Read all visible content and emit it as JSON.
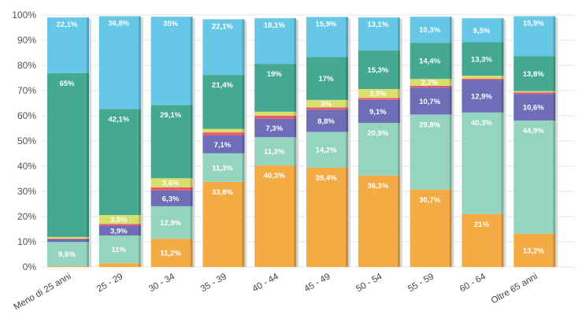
{
  "chart_data": {
    "type": "bar",
    "stacked": true,
    "ylim": [
      0,
      100
    ],
    "y_ticks": [
      "0%",
      "10%",
      "20%",
      "30%",
      "40%",
      "50%",
      "60%",
      "70%",
      "80%",
      "90%",
      "100%"
    ],
    "grid": true,
    "legend": "none",
    "categories": [
      "Meno di 25 anni",
      "25 - 29",
      "30 - 34",
      "35 - 39",
      "40 - 44",
      "45 - 49",
      "50 - 54",
      "55 - 59",
      "60 - 64",
      "Oltre 65 anni"
    ],
    "series": [
      {
        "color": "#f5ab43",
        "values": [
          0.3,
          1.5,
          11.2,
          33.8,
          40.3,
          39.4,
          36.3,
          30.7,
          21,
          13.2
        ],
        "labels": [
          "",
          "",
          "11,2%",
          "33,8%",
          "40,3%",
          "39,4%",
          "36,3%",
          "30,7%",
          "21%",
          "13,2%"
        ]
      },
      {
        "color": "#95d5c0",
        "values": [
          9.6,
          11,
          12.9,
          11.3,
          11.2,
          14.2,
          20.9,
          29.8,
          40.3,
          44.9
        ],
        "labels": [
          "9,6%",
          "11%",
          "12,9%",
          "11,3%",
          "11,2%",
          "14,2%",
          "20,9%",
          "29,8%",
          "40,3%",
          "44,9%"
        ]
      },
      {
        "color": "#6d6db8",
        "values": [
          1.1,
          3.9,
          6.3,
          7.1,
          7.3,
          8.8,
          9.1,
          10.7,
          12.9,
          10.6
        ],
        "labels": [
          "",
          "3,9%",
          "6,3%",
          "7,1%",
          "7,3%",
          "8,8%",
          "9,1%",
          "10,7%",
          "12,9%",
          "10,6%"
        ]
      },
      {
        "color": "#e85a70",
        "values": [
          0.3,
          0.7,
          1.2,
          1.2,
          1.2,
          0.9,
          0.8,
          0.7,
          0.5,
          0.6
        ],
        "labels": [
          "",
          "",
          "",
          "",
          "",
          "",
          "",
          "",
          "",
          ""
        ]
      },
      {
        "color": "#d9df6c",
        "values": [
          0.6,
          3.5,
          3.6,
          1.4,
          1.6,
          3,
          3.5,
          2.7,
          1.2,
          0.5
        ],
        "labels": [
          "",
          "3,5%",
          "3,6%",
          "",
          "",
          "3%",
          "3,5%",
          "2,7%",
          "",
          ""
        ]
      },
      {
        "color": "#45a890",
        "values": [
          65,
          42.1,
          29.1,
          21.4,
          19,
          17,
          15.3,
          14.4,
          13.3,
          13.8
        ],
        "labels": [
          "65%",
          "42,1%",
          "29,1%",
          "21,4%",
          "19%",
          "17%",
          "15,3%",
          "14,4%",
          "13,3%",
          "13,8%"
        ]
      },
      {
        "color": "#66c8e6",
        "values": [
          22.1,
          36.8,
          35,
          22.1,
          18.1,
          15.9,
          13.1,
          10.3,
          9.5,
          15.9
        ],
        "labels": [
          "22,1%",
          "36,8%",
          "35%",
          "22,1%",
          "18,1%",
          "15,9%",
          "13,1%",
          "10,3%",
          "9,5%",
          "15,9%"
        ]
      }
    ]
  }
}
